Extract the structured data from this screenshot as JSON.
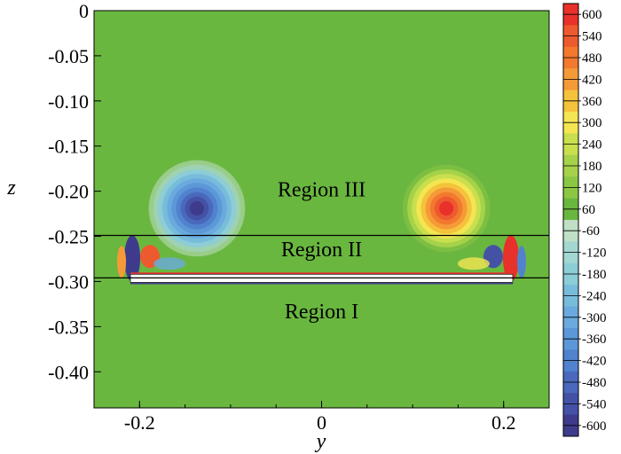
{
  "chart_data": {
    "type": "heatmap",
    "title": "",
    "xlabel": "y",
    "ylabel": "z",
    "xlim": [
      -0.25,
      0.25
    ],
    "ylim": [
      -0.44,
      0
    ],
    "x_ticks": [
      {
        "value": -0.2,
        "label": "-0.2"
      },
      {
        "value": 0,
        "label": "0"
      },
      {
        "value": 0.2,
        "label": "0.2"
      }
    ],
    "y_ticks": [
      {
        "value": 0,
        "label": "0"
      },
      {
        "value": -0.05,
        "label": "-0.05"
      },
      {
        "value": -0.1,
        "label": "-0.10"
      },
      {
        "value": -0.15,
        "label": "-0.15"
      },
      {
        "value": -0.2,
        "label": "-0.20"
      },
      {
        "value": -0.25,
        "label": "-0.25"
      },
      {
        "value": -0.3,
        "label": "-0.30"
      },
      {
        "value": -0.35,
        "label": "-0.35"
      },
      {
        "value": -0.4,
        "label": "-0.40"
      }
    ],
    "background_value": 0,
    "region_boundaries": [
      -0.249,
      -0.296
    ],
    "regions": [
      {
        "label": "Region III",
        "y": 0.0,
        "z": -0.198
      },
      {
        "label": "Region II",
        "y": 0.0,
        "z": -0.264
      },
      {
        "label": "Region I",
        "y": 0.0,
        "z": -0.333
      }
    ],
    "plate": {
      "y_start": -0.21,
      "y_end": 0.21,
      "z_top": -0.292,
      "z_bottom": -0.301
    },
    "vortices": [
      {
        "y": -0.137,
        "z": -0.219,
        "peak": -600
      },
      {
        "y": 0.137,
        "z": -0.219,
        "peak": 600
      }
    ],
    "colorbar": {
      "levels": [
        600,
        540,
        480,
        420,
        360,
        300,
        240,
        180,
        120,
        60,
        -60,
        -120,
        -180,
        -240,
        -300,
        -360,
        -420,
        -480,
        -540,
        -600
      ],
      "colors": [
        "#e8312a",
        "#ee5a2f",
        "#f2792e",
        "#f59a38",
        "#f5c23c",
        "#f3e652",
        "#c9df4d",
        "#a6d24a",
        "#8bc743",
        "#6ab740",
        "#bfe0c5",
        "#a3d7d1",
        "#8ccdd6",
        "#78bcdc",
        "#6aaade",
        "#5c98d8",
        "#5182cd",
        "#4a69bd",
        "#4452a6",
        "#3f3b8c"
      ]
    }
  }
}
